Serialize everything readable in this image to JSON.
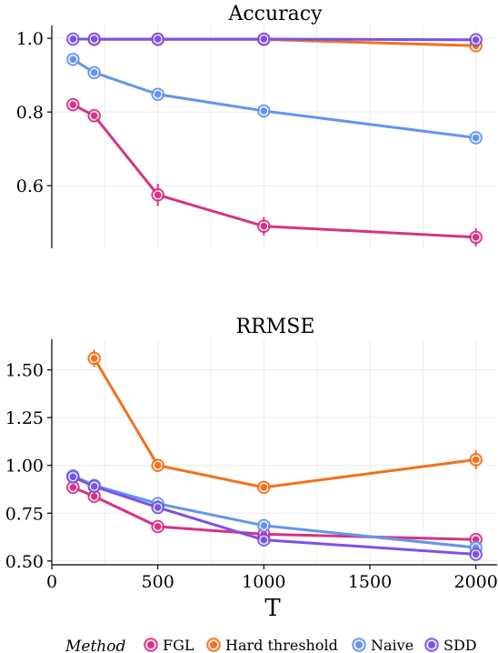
{
  "chart_data": [
    {
      "type": "line",
      "title": "Accuracy",
      "xlabel": "",
      "ylabel": "",
      "x": [
        100,
        200,
        500,
        1000,
        2000
      ],
      "xlim": [
        0,
        2100
      ],
      "ylim": [
        0.43,
        1.035
      ],
      "yticks": [
        0.6,
        0.8,
        1.0
      ],
      "ytick_labels": [
        "0.6",
        "0.8",
        "1.0"
      ],
      "show_xticks": false,
      "grid": true,
      "series": [
        {
          "name": "FGL",
          "color": "#d63384",
          "x": [
            100,
            200,
            500,
            1000,
            2000
          ],
          "values": [
            0.82,
            0.79,
            0.575,
            0.49,
            0.46
          ],
          "err": [
            0.01,
            0.01,
            0.03,
            0.025,
            0.025
          ]
        },
        {
          "name": "Hard threshold",
          "color": "#f2711c",
          "x": [
            200,
            500,
            1000,
            2000
          ],
          "values": [
            0.997,
            0.997,
            0.997,
            0.98
          ],
          "err": [
            0,
            0,
            0.005,
            0.005
          ]
        },
        {
          "name": "Naive",
          "color": "#6495ed",
          "x": [
            100,
            200,
            500,
            1000,
            2000
          ],
          "values": [
            0.943,
            0.907,
            0.848,
            0.803,
            0.73
          ],
          "err": [
            0.005,
            0.005,
            0.005,
            0.005,
            0.005
          ]
        },
        {
          "name": "SDD",
          "color": "#7b52e6",
          "x": [
            100,
            200,
            500,
            1000,
            2000
          ],
          "values": [
            0.998,
            0.998,
            0.998,
            0.998,
            0.996
          ],
          "err": [
            0,
            0,
            0,
            0,
            0
          ]
        }
      ]
    },
    {
      "type": "line",
      "title": "RRMSE",
      "xlabel": "T",
      "ylabel": "",
      "x": [
        100,
        200,
        500,
        1000,
        2000
      ],
      "xlim": [
        0,
        2100
      ],
      "ylim": [
        0.48,
        1.66
      ],
      "yticks": [
        0.5,
        0.75,
        1.0,
        1.25,
        1.5
      ],
      "ytick_labels": [
        "0.50",
        "0.75",
        "1.00",
        "1.25",
        "1.50"
      ],
      "xticks": [
        0,
        500,
        1000,
        1500,
        2000
      ],
      "xtick_labels": [
        "0",
        "500",
        "1000",
        "1500",
        "2000"
      ],
      "show_xticks": true,
      "grid": true,
      "series": [
        {
          "name": "FGL",
          "color": "#d63384",
          "x": [
            100,
            200,
            500,
            1000,
            2000
          ],
          "values": [
            0.885,
            0.838,
            0.68,
            0.64,
            0.612
          ],
          "err": [
            0.01,
            0.01,
            0.01,
            0.01,
            0.01
          ]
        },
        {
          "name": "Hard threshold",
          "color": "#f2711c",
          "x": [
            200,
            500,
            1000,
            2000
          ],
          "values": [
            1.56,
            1.0,
            0.885,
            1.03
          ],
          "err": [
            0.045,
            0.01,
            0.01,
            0.05
          ]
        },
        {
          "name": "Naive",
          "color": "#6495ed",
          "x": [
            100,
            200,
            500,
            1000,
            2000
          ],
          "values": [
            0.945,
            0.895,
            0.8,
            0.685,
            0.57
          ],
          "err": [
            0.01,
            0.01,
            0.01,
            0.01,
            0.01
          ]
        },
        {
          "name": "SDD",
          "color": "#7b52e6",
          "x": [
            100,
            200,
            500,
            1000,
            2000
          ],
          "values": [
            0.94,
            0.89,
            0.78,
            0.61,
            0.535
          ],
          "err": [
            0.01,
            0.01,
            0.01,
            0.01,
            0.01
          ]
        }
      ]
    }
  ],
  "legend": {
    "title": "Method",
    "items": [
      {
        "label": "FGL",
        "color": "#d63384"
      },
      {
        "label": "Hard threshold",
        "color": "#f2711c"
      },
      {
        "label": "Naive",
        "color": "#6495ed"
      },
      {
        "label": "SDD",
        "color": "#7b52e6"
      }
    ]
  }
}
